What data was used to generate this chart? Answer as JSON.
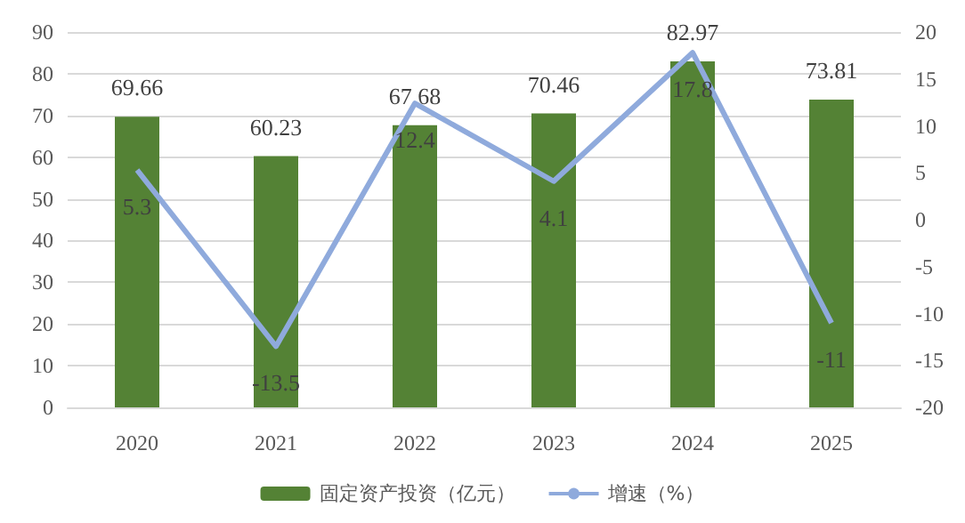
{
  "chart_data": {
    "type": "bar",
    "categories": [
      "2020",
      "2021",
      "2022",
      "2023",
      "2024",
      "2025"
    ],
    "series": [
      {
        "name": "固定资产投资（亿元）",
        "color": "#548235",
        "values": [
          69.66,
          60.23,
          67.68,
          70.46,
          82.97,
          73.81
        ]
      },
      {
        "name": "增速（%）",
        "type": "line",
        "axis": "y2",
        "color": "#8faadc",
        "values": [
          5.3,
          -13.5,
          12.4,
          4.1,
          17.8,
          -11
        ]
      }
    ],
    "ylim": [
      0,
      90
    ],
    "yticks": [
      0,
      10,
      20,
      30,
      40,
      50,
      60,
      70,
      80,
      90
    ],
    "y2lim": [
      -20,
      20
    ],
    "y2ticks": [
      -20,
      -15,
      -10,
      -5,
      0,
      5,
      10,
      15,
      20
    ],
    "grid": "y",
    "legend": "bottom",
    "data_labels": true,
    "marker": "none"
  }
}
